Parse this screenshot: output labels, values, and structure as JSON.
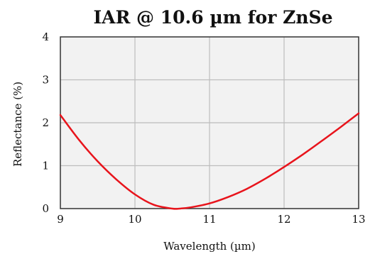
{
  "chart_data": {
    "type": "line",
    "title": "IAR @ 10.6 µm for ZnSe",
    "xlabel": "Wavelength (µm)",
    "ylabel": "Reflectance (%)",
    "xlim": [
      9,
      13
    ],
    "ylim": [
      0,
      4
    ],
    "xticks": [
      "9",
      "10",
      "11",
      "12",
      "13"
    ],
    "yticks": [
      "0",
      "1",
      "2",
      "3",
      "4"
    ],
    "grid": true,
    "legend": "none",
    "series": [
      {
        "color": "#e8141c",
        "x": [
          9.0,
          9.25,
          9.5,
          9.75,
          10.0,
          10.25,
          10.5,
          10.6,
          10.75,
          11.0,
          11.25,
          11.5,
          11.75,
          12.0,
          12.25,
          12.5,
          12.75,
          13.0
        ],
        "y": [
          2.18,
          1.6,
          1.1,
          0.68,
          0.33,
          0.09,
          0.0,
          0.0,
          0.03,
          0.12,
          0.27,
          0.46,
          0.7,
          0.97,
          1.26,
          1.57,
          1.89,
          2.22
        ]
      }
    ]
  },
  "colors": {
    "plot_background": "#f2f2f2",
    "grid": "#bdbdbd",
    "frame": "#333333",
    "curve": "#e8141c"
  }
}
